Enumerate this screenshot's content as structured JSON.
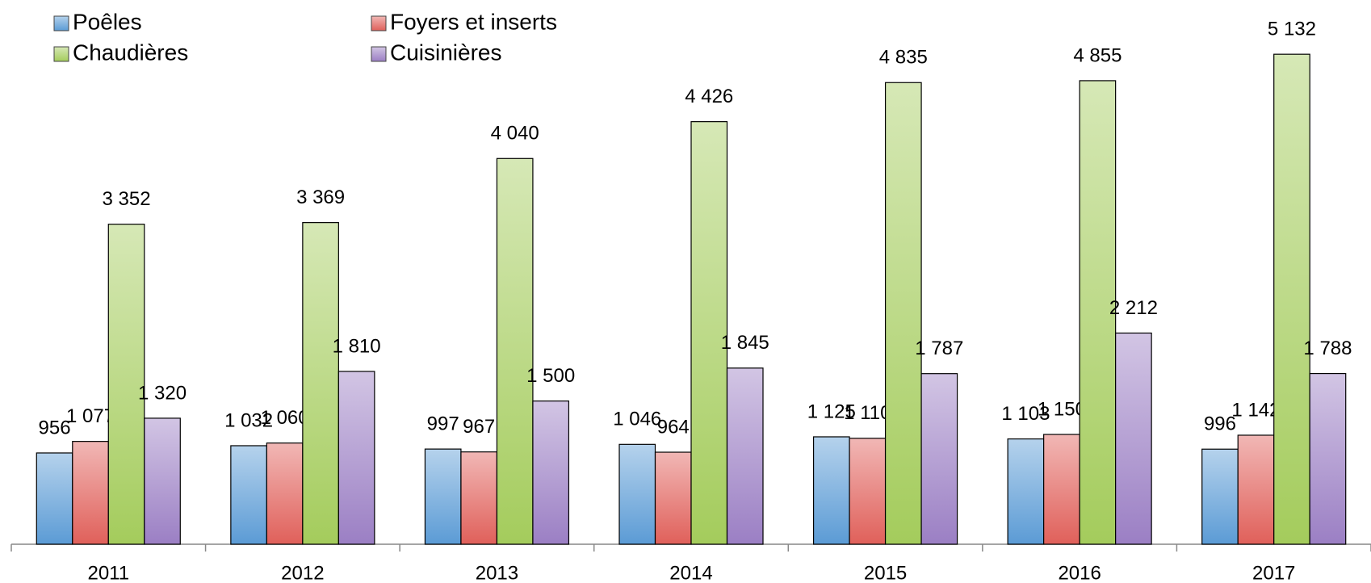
{
  "chart_data": {
    "type": "bar",
    "categories": [
      "2011",
      "2012",
      "2013",
      "2014",
      "2015",
      "2016",
      "2017"
    ],
    "series": [
      {
        "name": "Poêles",
        "color": "#5b9bd5",
        "values": [
          956,
          1032,
          997,
          1046,
          1125,
          1103,
          996
        ],
        "value_labels": [
          "956",
          "1 032",
          "997",
          "1 046",
          "1 125",
          "1 103",
          "996"
        ]
      },
      {
        "name": "Foyers et inserts",
        "color": "#e0605a",
        "values": [
          1077,
          1060,
          967,
          964,
          1110,
          1150,
          1142
        ],
        "value_labels": [
          "1 077",
          "1 060",
          "967",
          "964",
          "1 110",
          "1 150",
          "1 142"
        ]
      },
      {
        "name": "Chaudières",
        "color": "#a4cc5c",
        "values": [
          3352,
          3369,
          4040,
          4426,
          4835,
          4855,
          5132
        ],
        "value_labels": [
          "3 352",
          "3 369",
          "4 040",
          "4 426",
          "4 835",
          "4 855",
          "5 132"
        ]
      },
      {
        "name": "Cuisinières",
        "color": "#9b7fc4",
        "values": [
          1320,
          1810,
          1500,
          1845,
          1787,
          2212,
          1788
        ],
        "value_labels": [
          "1 320",
          "1 810",
          "1 500",
          "1 845",
          "1 787",
          "2 212",
          "1 788"
        ]
      }
    ],
    "ylim": [
      0,
      5700
    ],
    "legend": "top-left"
  }
}
